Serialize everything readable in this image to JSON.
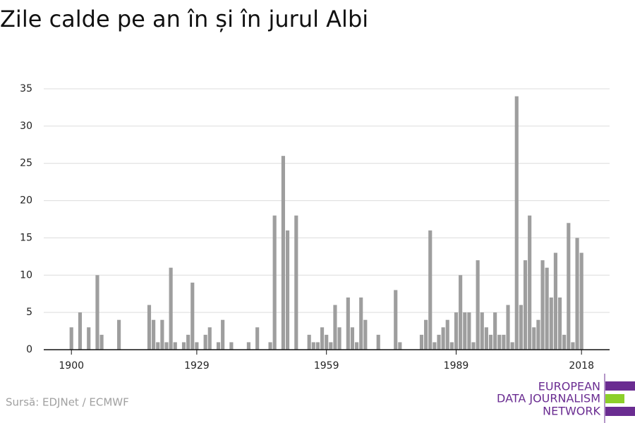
{
  "chart_data": {
    "type": "bar",
    "title": "Zile calde pe an în și în jurul Albi",
    "source": "Sursă: EDJNet / ECMWF",
    "logo": [
      "EUROPEAN",
      "DATA JOURNALISM",
      "NETWORK"
    ],
    "color": "#9e9e9e",
    "grid": true,
    "x": [
      1900,
      1901,
      1902,
      1903,
      1904,
      1905,
      1906,
      1907,
      1908,
      1909,
      1910,
      1911,
      1912,
      1913,
      1914,
      1915,
      1916,
      1917,
      1918,
      1919,
      1920,
      1921,
      1922,
      1923,
      1924,
      1925,
      1926,
      1927,
      1928,
      1929,
      1930,
      1931,
      1932,
      1933,
      1934,
      1935,
      1936,
      1937,
      1938,
      1939,
      1940,
      1941,
      1942,
      1943,
      1944,
      1945,
      1946,
      1947,
      1948,
      1949,
      1950,
      1951,
      1952,
      1953,
      1954,
      1955,
      1956,
      1957,
      1958,
      1959,
      1960,
      1961,
      1962,
      1963,
      1964,
      1965,
      1966,
      1967,
      1968,
      1969,
      1970,
      1971,
      1972,
      1973,
      1974,
      1975,
      1976,
      1977,
      1978,
      1979,
      1980,
      1981,
      1982,
      1983,
      1984,
      1985,
      1986,
      1987,
      1988,
      1989,
      1990,
      1991,
      1992,
      1993,
      1994,
      1995,
      1996,
      1997,
      1998,
      1999,
      2000,
      2001,
      2002,
      2003,
      2004,
      2005,
      2006,
      2007,
      2008,
      2009,
      2010,
      2011,
      2012,
      2013,
      2014,
      2015,
      2016,
      2017,
      2018
    ],
    "values": [
      3,
      0,
      5,
      0,
      3,
      0,
      10,
      2,
      0,
      0,
      0,
      4,
      0,
      0,
      0,
      0,
      0,
      0,
      6,
      4,
      1,
      4,
      1,
      11,
      1,
      0,
      1,
      2,
      9,
      1,
      0,
      2,
      3,
      0,
      1,
      4,
      0,
      1,
      0,
      0,
      0,
      1,
      0,
      3,
      0,
      0,
      1,
      18,
      0,
      26,
      16,
      0,
      18,
      0,
      0,
      2,
      1,
      1,
      3,
      2,
      1,
      6,
      3,
      0,
      7,
      3,
      1,
      7,
      4,
      0,
      0,
      2,
      0,
      0,
      0,
      8,
      1,
      0,
      0,
      0,
      0,
      2,
      4,
      16,
      1,
      2,
      3,
      4,
      1,
      5,
      10,
      5,
      5,
      1,
      12,
      5,
      3,
      2,
      5,
      2,
      2,
      6,
      1,
      34,
      6,
      12,
      18,
      3,
      4,
      12,
      11,
      7,
      13,
      7,
      2,
      17,
      1,
      15,
      13
    ],
    "xlim": [
      1893.6,
      2024.5
    ],
    "xticks": [
      1900,
      1929,
      1959,
      1989,
      2018
    ],
    "ylim": [
      0,
      35
    ],
    "yticks": [
      0,
      5,
      10,
      15,
      20,
      25,
      30,
      35
    ]
  }
}
